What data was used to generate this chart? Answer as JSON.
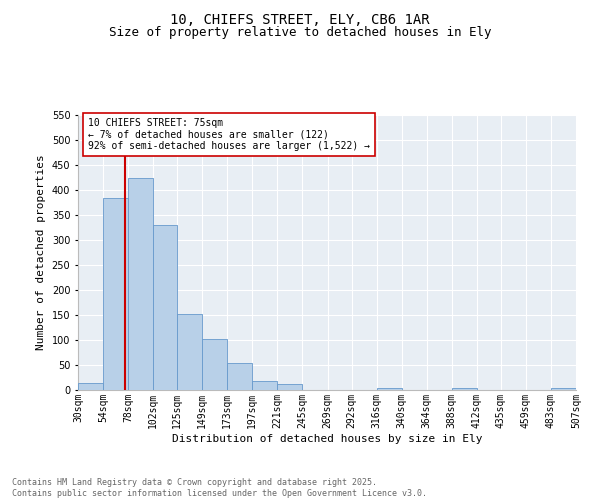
{
  "title_line1": "10, CHIEFS STREET, ELY, CB6 1AR",
  "title_line2": "Size of property relative to detached houses in Ely",
  "xlabel": "Distribution of detached houses by size in Ely",
  "ylabel": "Number of detached properties",
  "annotation_line1": "10 CHIEFS STREET: 75sqm",
  "annotation_line2": "← 7% of detached houses are smaller (122)",
  "annotation_line3": "92% of semi-detached houses are larger (1,522) →",
  "property_size": 75,
  "bin_edges": [
    30,
    54,
    78,
    102,
    125,
    149,
    173,
    197,
    221,
    245,
    269,
    292,
    316,
    340,
    364,
    388,
    412,
    435,
    459,
    483,
    507
  ],
  "bin_labels": [
    "30sqm",
    "54sqm",
    "78sqm",
    "102sqm",
    "125sqm",
    "149sqm",
    "173sqm",
    "197sqm",
    "221sqm",
    "245sqm",
    "269sqm",
    "292sqm",
    "316sqm",
    "340sqm",
    "364sqm",
    "388sqm",
    "412sqm",
    "435sqm",
    "459sqm",
    "483sqm",
    "507sqm"
  ],
  "bar_heights": [
    15,
    385,
    425,
    330,
    153,
    102,
    55,
    19,
    12,
    0,
    0,
    0,
    4,
    0,
    0,
    5,
    0,
    0,
    0,
    4
  ],
  "bar_color": "#b8d0e8",
  "bar_edgecolor": "#6699cc",
  "vline_x": 75,
  "vline_color": "#cc0000",
  "vline_linewidth": 1.5,
  "ylim": [
    0,
    550
  ],
  "yticks": [
    0,
    50,
    100,
    150,
    200,
    250,
    300,
    350,
    400,
    450,
    500,
    550
  ],
  "bg_color": "#ffffff",
  "plot_bg_color": "#e8eef4",
  "annotation_box_facecolor": "#ffffff",
  "annotation_box_edgecolor": "#cc0000",
  "annotation_fontsize": 7,
  "title_fontsize1": 10,
  "title_fontsize2": 9,
  "tick_fontsize": 7,
  "ylabel_fontsize": 8,
  "xlabel_fontsize": 8,
  "footer_text": "Contains HM Land Registry data © Crown copyright and database right 2025.\nContains public sector information licensed under the Open Government Licence v3.0.",
  "footer_fontsize": 6,
  "footer_color": "#666666",
  "grid_color": "#ffffff",
  "grid_linewidth": 0.8
}
